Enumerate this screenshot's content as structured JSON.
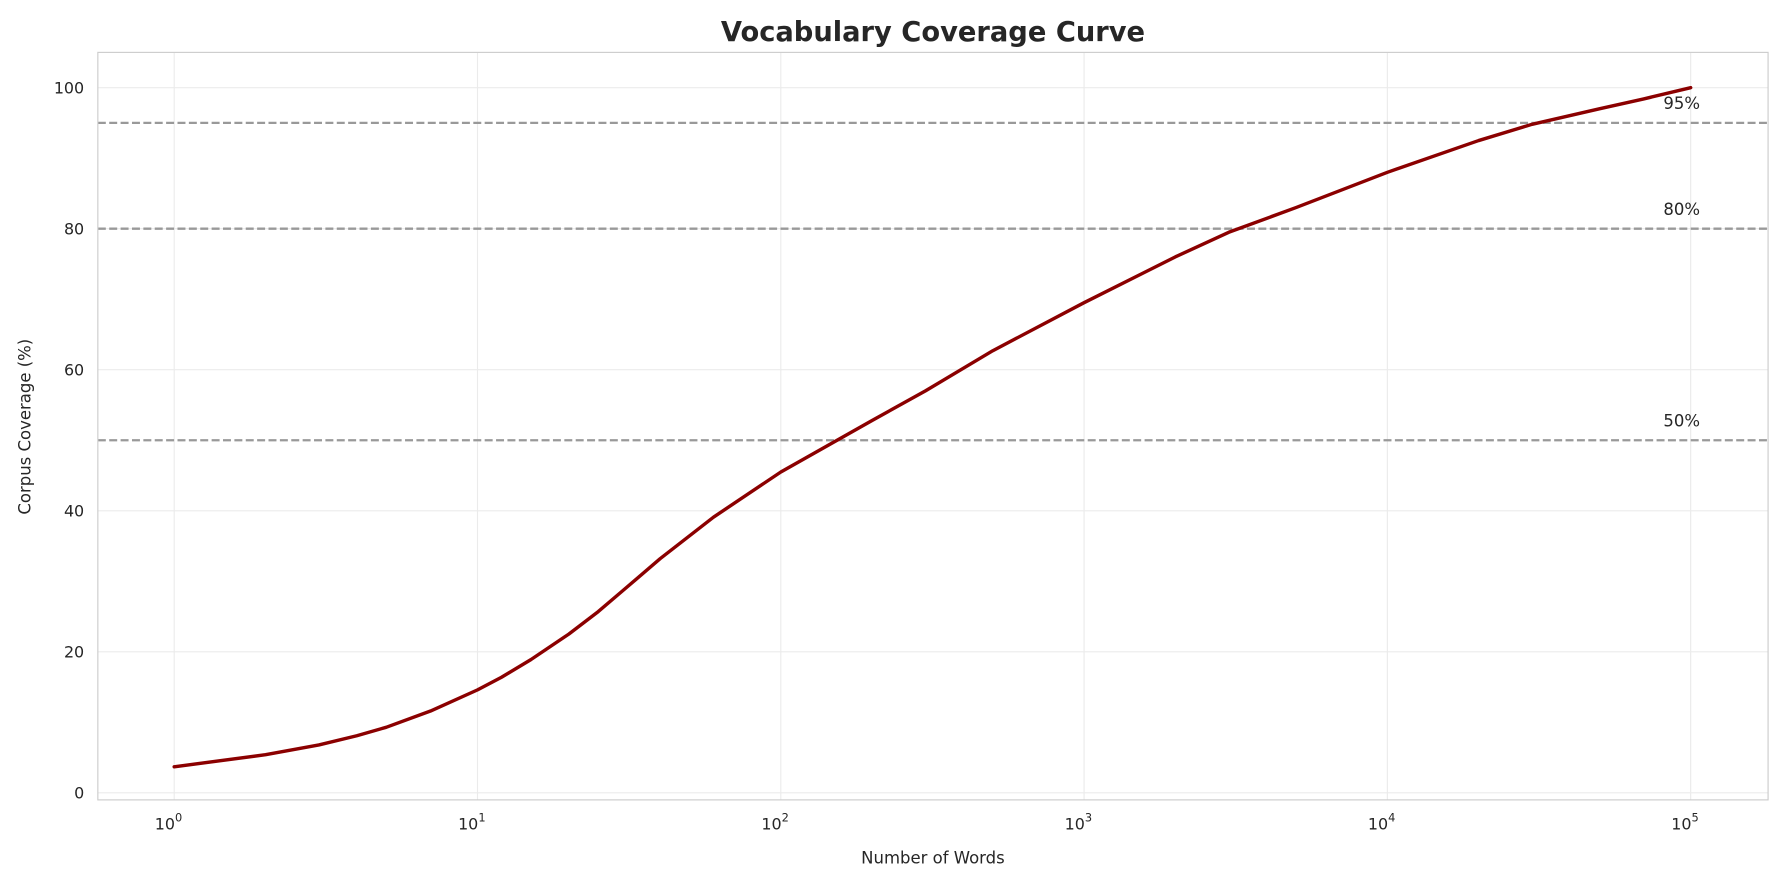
{
  "chart_data": {
    "type": "line",
    "title": "Vocabulary Coverage Curve",
    "xlabel": "Number of Words",
    "ylabel": "Corpus Coverage (%)",
    "x_scale": "log",
    "xlim": [
      0.56,
      180000
    ],
    "ylim": [
      -1,
      105
    ],
    "grid": true,
    "x_ticks": [
      {
        "value": 1,
        "base": "10",
        "exp": "0"
      },
      {
        "value": 10,
        "base": "10",
        "exp": "1"
      },
      {
        "value": 100,
        "base": "10",
        "exp": "2"
      },
      {
        "value": 1000,
        "base": "10",
        "exp": "3"
      },
      {
        "value": 10000,
        "base": "10",
        "exp": "4"
      },
      {
        "value": 100000,
        "base": "10",
        "exp": "5"
      }
    ],
    "y_ticks": [
      0,
      20,
      40,
      60,
      80,
      100
    ],
    "series": [
      {
        "color": "#8b0000",
        "x": [
          1,
          2,
          3,
          4,
          5,
          7,
          10,
          12,
          15,
          20,
          25,
          30,
          40,
          60,
          100,
          200,
          300,
          500,
          1000,
          2000,
          3000,
          5000,
          10000,
          20000,
          30000,
          50000,
          70000,
          100000
        ],
        "y": [
          3.7,
          5.4,
          6.8,
          8.1,
          9.3,
          11.6,
          14.6,
          16.4,
          18.9,
          22.5,
          25.7,
          28.6,
          33.2,
          39.1,
          45.5,
          52.8,
          57.0,
          62.7,
          69.5,
          76.0,
          79.5,
          83.0,
          88.0,
          92.5,
          94.8,
          97.0,
          98.4,
          100.0
        ]
      }
    ],
    "reference_lines": [
      {
        "y": 50,
        "label": "50%",
        "color": "#999999"
      },
      {
        "y": 80,
        "label": "80%",
        "color": "#999999"
      },
      {
        "y": 95,
        "label": "95%",
        "color": "#999999"
      }
    ]
  }
}
